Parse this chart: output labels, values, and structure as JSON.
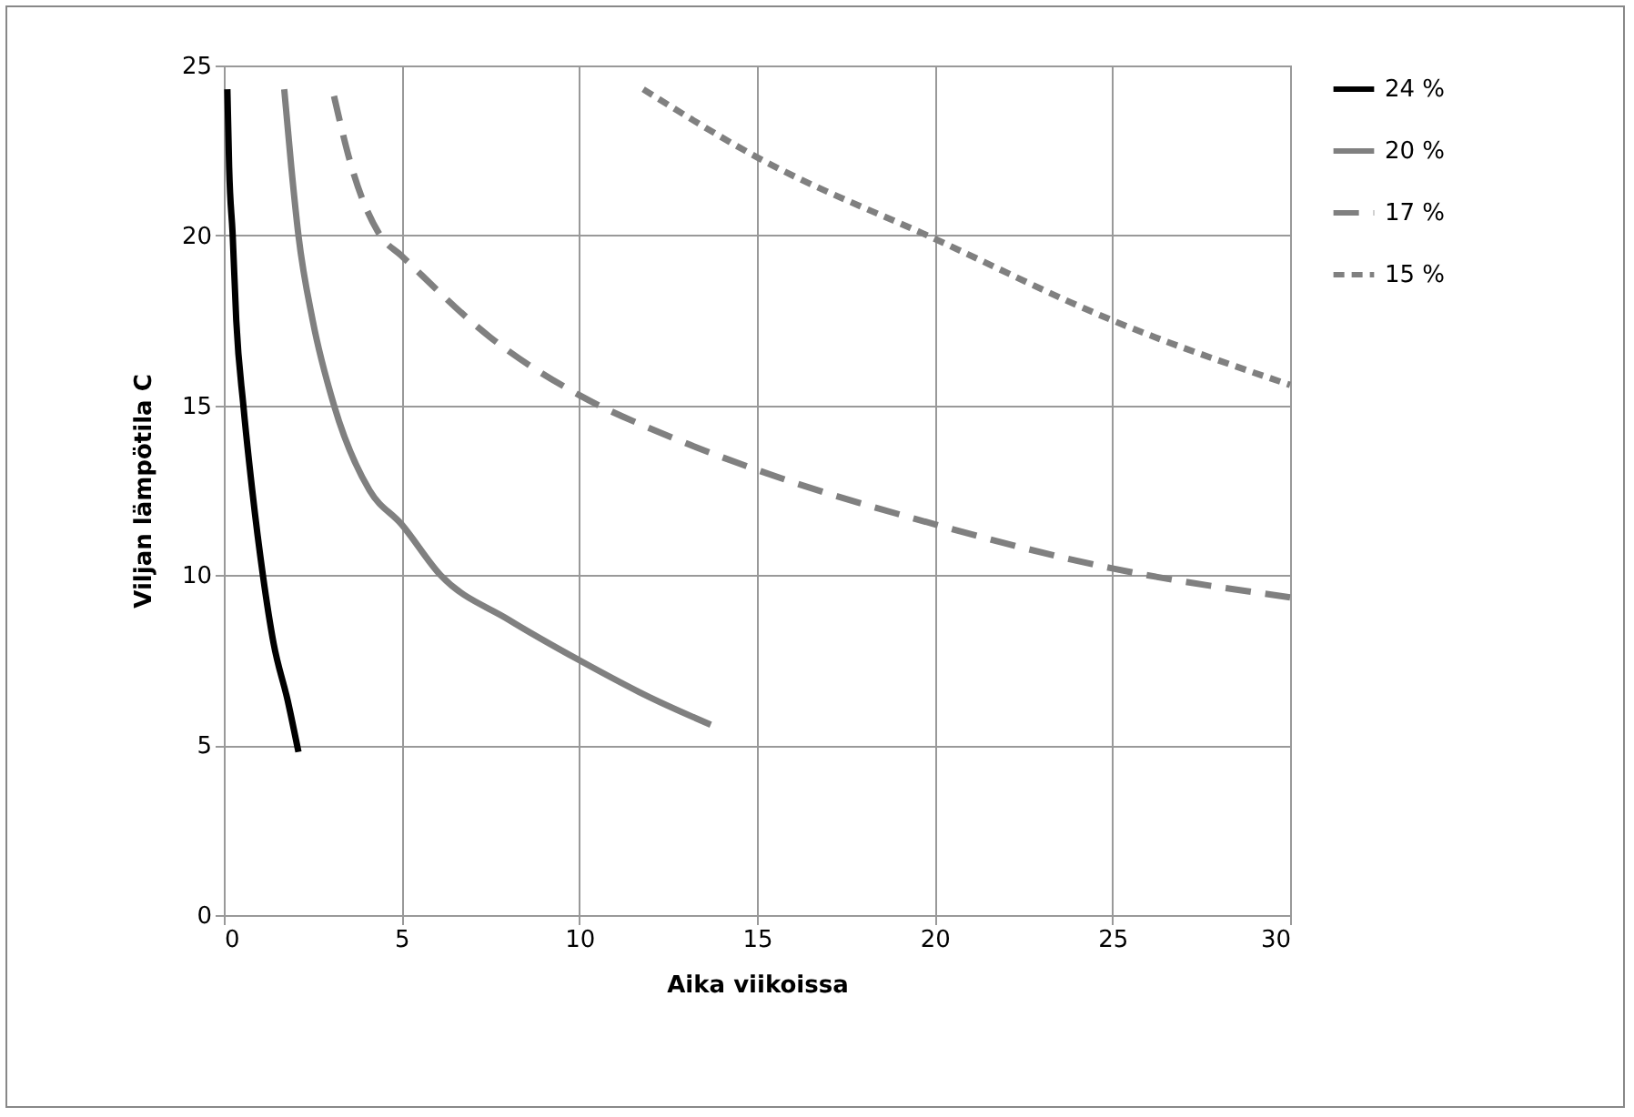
{
  "chart_data": {
    "type": "line",
    "xlabel": "Aika viikoissa",
    "ylabel": "Viljan lämpötila C",
    "xlim": [
      0,
      30
    ],
    "xticks": [
      0,
      5,
      10,
      15,
      20,
      25,
      30
    ],
    "ylim": [
      0,
      25
    ],
    "yticks": [
      0,
      5,
      10,
      15,
      20,
      25
    ],
    "grid": true,
    "legend": "right",
    "series": [
      {
        "name": "24 %",
        "color": "#000000",
        "line_style": "solid",
        "x": [
          0.1,
          0.15,
          0.25,
          0.35,
          0.55,
          0.8,
          1.1,
          1.4,
          1.8,
          2.1
        ],
        "values": [
          24.3,
          22,
          20,
          17.5,
          15,
          12.5,
          10,
          8,
          6.3,
          4.8
        ]
      },
      {
        "name": "20 %",
        "color": "#808080",
        "line_style": "solid",
        "x": [
          1.7,
          1.9,
          2.1,
          2.5,
          3.1,
          4.1,
          5,
          6.1,
          8,
          10,
          12,
          13.7
        ],
        "values": [
          24.3,
          22,
          20,
          17.5,
          15,
          12.5,
          11.5,
          10,
          8.7,
          7.5,
          6.4,
          5.6
        ]
      },
      {
        "name": "17 %",
        "color": "#808080",
        "line_style": "dashed",
        "x": [
          3.1,
          3.6,
          4.4,
          5,
          7.5,
          10,
          12.5,
          15,
          20,
          25,
          30
        ],
        "values": [
          24.1,
          22,
          20,
          19.4,
          17,
          15.3,
          14.1,
          13.1,
          11.5,
          10.2,
          9.35
        ]
      },
      {
        "name": "15 %",
        "color": "#808080",
        "line_style": "dotted",
        "x": [
          11.8,
          15,
          20,
          25,
          30
        ],
        "values": [
          24.3,
          22.3,
          19.9,
          17.5,
          15.6
        ]
      }
    ]
  }
}
